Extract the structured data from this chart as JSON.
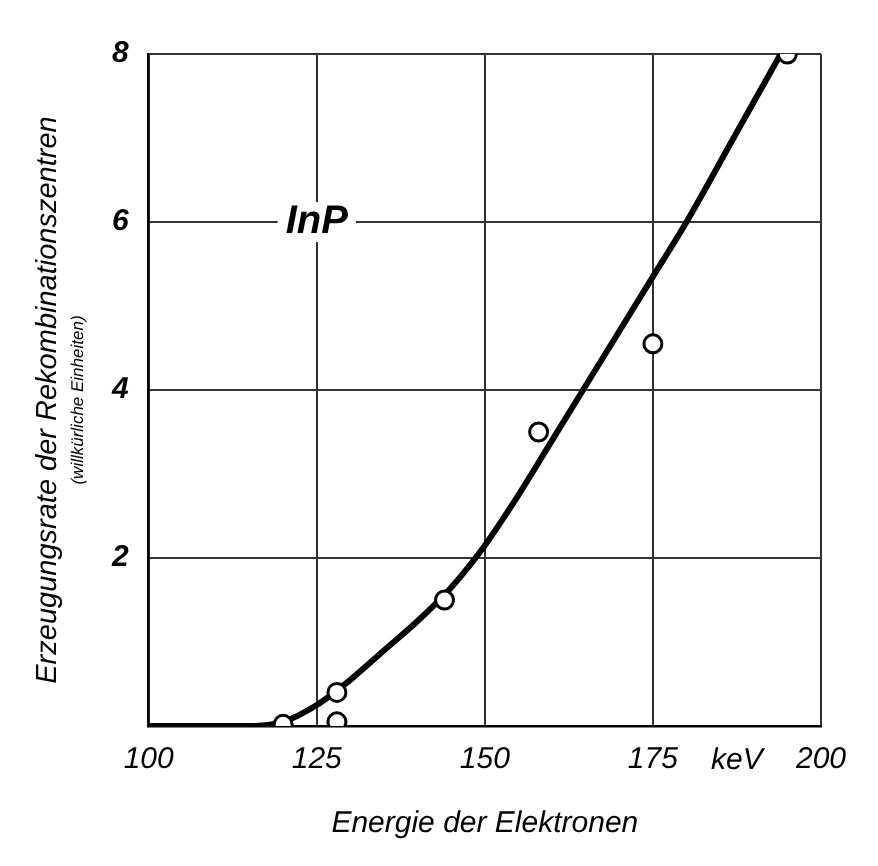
{
  "chart_data": {
    "type": "scatter",
    "xlabel": "Energie der Elektronen",
    "ylabel": "Erzeugungsrate der Rekombinationszentren\n(willkürliche Einheiten)",
    "annotations": [
      "InP",
      "keV"
    ],
    "xlim": [
      100,
      200
    ],
    "xticks": [
      100,
      125,
      150,
      175,
      200
    ],
    "ylim": [
      0,
      8
    ],
    "yticks": [
      {
        "value": 0,
        "label": null
      },
      2,
      4,
      6,
      8
    ],
    "grid": true,
    "legend": false,
    "marker": "circle",
    "series": [
      {
        "type": "scatter",
        "color": "#000000",
        "x": [
          120,
          128,
          128,
          144,
          158,
          175,
          195
        ],
        "values": [
          0.02,
          0.4,
          0.05,
          1.5,
          3.5,
          4.55,
          8
        ]
      },
      {
        "type": "line",
        "color": "#000000",
        "marker": "none",
        "x": [
          100,
          115,
          120,
          125,
          130,
          135,
          140,
          145,
          150,
          155,
          160,
          165,
          170,
          175,
          180,
          187,
          194
        ],
        "values": [
          0,
          0,
          0.05,
          0.25,
          0.55,
          0.9,
          1.25,
          1.65,
          2.15,
          2.75,
          3.4,
          4.05,
          4.7,
          5.35,
          6.0,
          7.0,
          8
        ]
      }
    ]
  }
}
